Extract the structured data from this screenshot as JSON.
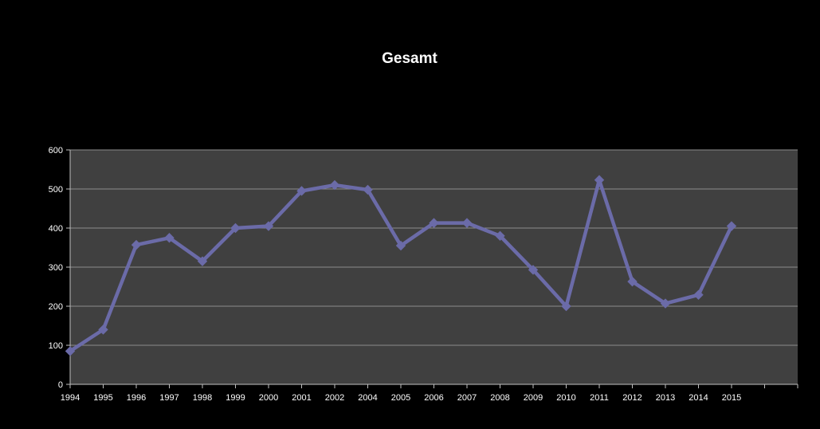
{
  "colors": {
    "background": "#000000",
    "plot_area": "#404040",
    "gridline": "#8c8c8c",
    "axis": "#bfbfbf",
    "text": "#ffffff",
    "series": "#6b6ba8"
  },
  "chart_data": {
    "type": "line",
    "title": "Gesamt",
    "xlabel": "",
    "ylabel": "",
    "ylim": [
      0,
      600
    ],
    "yticks": [
      0,
      100,
      200,
      300,
      400,
      500,
      600
    ],
    "grid": true,
    "legend": "none",
    "marker": "diamond-icon",
    "categories": [
      "1994",
      "1995",
      "1996",
      "1997",
      "1998",
      "1999",
      "2000",
      "2001",
      "2002",
      "2004",
      "2005",
      "2006",
      "2007",
      "2008",
      "2009",
      "2010",
      "2011",
      "2012",
      "2013",
      "2014",
      "2015",
      ""
    ],
    "series": [
      {
        "values": [
          85,
          140,
          357,
          375,
          315,
          400,
          405,
          495,
          510,
          498,
          355,
          413,
          413,
          380,
          293,
          200,
          523,
          263,
          207,
          229,
          405,
          null
        ]
      }
    ]
  }
}
